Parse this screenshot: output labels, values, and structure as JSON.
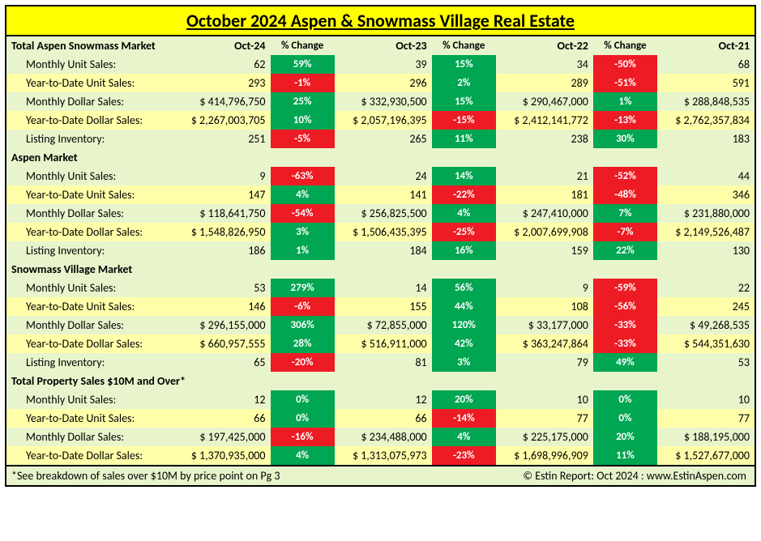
{
  "title": "October 2024 Aspen & Snowmass Village Real Estate",
  "columns": [
    "",
    "Oct-24",
    "% Change",
    "Oct-23",
    "% Change",
    "Oct-22",
    "% Change",
    "Oct-21"
  ],
  "colors": {
    "pos": "#00a651",
    "neg": "#ed1c24",
    "alt": "#ffffaa",
    "base": "#e8f5cc"
  },
  "sections": [
    {
      "name": "Total Aspen Snowmass Market",
      "rows": [
        {
          "l": "Monthly Unit Sales:",
          "v": [
            "62",
            "39",
            "34",
            "68"
          ],
          "p": [
            "59%",
            "15%",
            "-50%"
          ],
          "pc": [
            "g",
            "g",
            "r"
          ],
          "alt": false
        },
        {
          "l": "Year-to-Date Unit Sales:",
          "v": [
            "293",
            "296",
            "289",
            "591"
          ],
          "p": [
            "-1%",
            "2%",
            "-51%"
          ],
          "pc": [
            "r",
            "g",
            "r"
          ],
          "alt": true
        },
        {
          "l": "Monthly Dollar Sales:",
          "v": [
            "$    414,796,750",
            "$    332,930,500",
            "$    290,467,000",
            "$    288,848,535"
          ],
          "p": [
            "25%",
            "15%",
            "1%"
          ],
          "pc": [
            "g",
            "g",
            "g"
          ],
          "alt": false
        },
        {
          "l": "Year-to-Date Dollar Sales:",
          "v": [
            "$ 2,267,003,705",
            "$ 2,057,196,395",
            "$ 2,412,141,772",
            "$ 2,762,357,834"
          ],
          "p": [
            "10%",
            "-15%",
            "-13%"
          ],
          "pc": [
            "g",
            "r",
            "r"
          ],
          "alt": true
        },
        {
          "l": "Listing Inventory:",
          "v": [
            "251",
            "265",
            "238",
            "183"
          ],
          "p": [
            "-5%",
            "11%",
            "30%"
          ],
          "pc": [
            "r",
            "g",
            "g"
          ],
          "alt": false
        }
      ]
    },
    {
      "name": "Aspen Market",
      "rows": [
        {
          "l": "Monthly Unit Sales:",
          "v": [
            "9",
            "24",
            "21",
            "44"
          ],
          "p": [
            "-63%",
            "14%",
            "-52%"
          ],
          "pc": [
            "r",
            "g",
            "r"
          ],
          "alt": false
        },
        {
          "l": "Year-to-Date Unit Sales:",
          "v": [
            "147",
            "141",
            "181",
            "346"
          ],
          "p": [
            "4%",
            "-22%",
            "-48%"
          ],
          "pc": [
            "g",
            "r",
            "r"
          ],
          "alt": true
        },
        {
          "l": "Monthly Dollar Sales:",
          "v": [
            "$    118,641,750",
            "$    256,825,500",
            "$    247,410,000",
            "$    231,880,000"
          ],
          "p": [
            "-54%",
            "4%",
            "7%"
          ],
          "pc": [
            "r",
            "g",
            "g"
          ],
          "alt": false
        },
        {
          "l": "Year-to-Date Dollar Sales:",
          "v": [
            "$ 1,548,826,950",
            "$ 1,506,435,395",
            "$ 2,007,699,908",
            "$ 2,149,526,487"
          ],
          "p": [
            "3%",
            "-25%",
            "-7%"
          ],
          "pc": [
            "g",
            "r",
            "r"
          ],
          "alt": true
        },
        {
          "l": "Listing Inventory:",
          "v": [
            "186",
            "184",
            "159",
            "130"
          ],
          "p": [
            "1%",
            "16%",
            "22%"
          ],
          "pc": [
            "g",
            "g",
            "g"
          ],
          "alt": false
        }
      ]
    },
    {
      "name": "Snowmass Village Market",
      "rows": [
        {
          "l": "Monthly Unit Sales:",
          "v": [
            "53",
            "14",
            "9",
            "22"
          ],
          "p": [
            "279%",
            "56%",
            "-59%"
          ],
          "pc": [
            "g",
            "g",
            "r"
          ],
          "alt": false
        },
        {
          "l": "Year-to-Date Unit Sales:",
          "v": [
            "146",
            "155",
            "108",
            "245"
          ],
          "p": [
            "-6%",
            "44%",
            "-56%"
          ],
          "pc": [
            "r",
            "g",
            "r"
          ],
          "alt": true
        },
        {
          "l": "Monthly Dollar Sales:",
          "v": [
            "$    296,155,000",
            "$       72,855,000",
            "$       33,177,000",
            "$       49,268,535"
          ],
          "p": [
            "306%",
            "120%",
            "-33%"
          ],
          "pc": [
            "g",
            "g",
            "r"
          ],
          "alt": false
        },
        {
          "l": "Year-to-Date Dollar Sales:",
          "v": [
            "$    660,957,555",
            "$    516,911,000",
            "$    363,247,864",
            "$    544,351,630"
          ],
          "p": [
            "28%",
            "42%",
            "-33%"
          ],
          "pc": [
            "g",
            "g",
            "r"
          ],
          "alt": true
        },
        {
          "l": "Listing Inventory:",
          "v": [
            "65",
            "81",
            "79",
            "53"
          ],
          "p": [
            "-20%",
            "3%",
            "49%"
          ],
          "pc": [
            "r",
            "g",
            "g"
          ],
          "alt": false
        }
      ]
    },
    {
      "name": "Total Property Sales $10M and Over*",
      "rows": [
        {
          "l": "Monthly Unit Sales:",
          "v": [
            "12",
            "12",
            "10",
            "10"
          ],
          "p": [
            "0%",
            "20%",
            "0%"
          ],
          "pc": [
            "g",
            "g",
            "g"
          ],
          "alt": false
        },
        {
          "l": "Year-to-Date Unit Sales:",
          "v": [
            "66",
            "66",
            "77",
            "77"
          ],
          "p": [
            "0%",
            "-14%",
            "0%"
          ],
          "pc": [
            "g",
            "r",
            "g"
          ],
          "alt": true
        },
        {
          "l": "Monthly Dollar Sales:",
          "v": [
            "$    197,425,000",
            "$    234,488,000",
            "$    225,175,000",
            "$    188,195,000"
          ],
          "p": [
            "-16%",
            "4%",
            "20%"
          ],
          "pc": [
            "r",
            "g",
            "g"
          ],
          "alt": false
        },
        {
          "l": "Year-to-Date Dollar Sales:",
          "v": [
            "$ 1,370,935,000",
            "$ 1,313,075,973",
            "$ 1,698,996,909",
            "$ 1,527,677,000"
          ],
          "p": [
            "4%",
            "-23%",
            "11%"
          ],
          "pc": [
            "g",
            "r",
            "g"
          ],
          "alt": true
        }
      ]
    }
  ],
  "footer_left": "*See breakdown of sales over $10M by price point on Pg 3",
  "footer_right": "© Estin Report: Oct 2024 : www.EstinAspen.com"
}
